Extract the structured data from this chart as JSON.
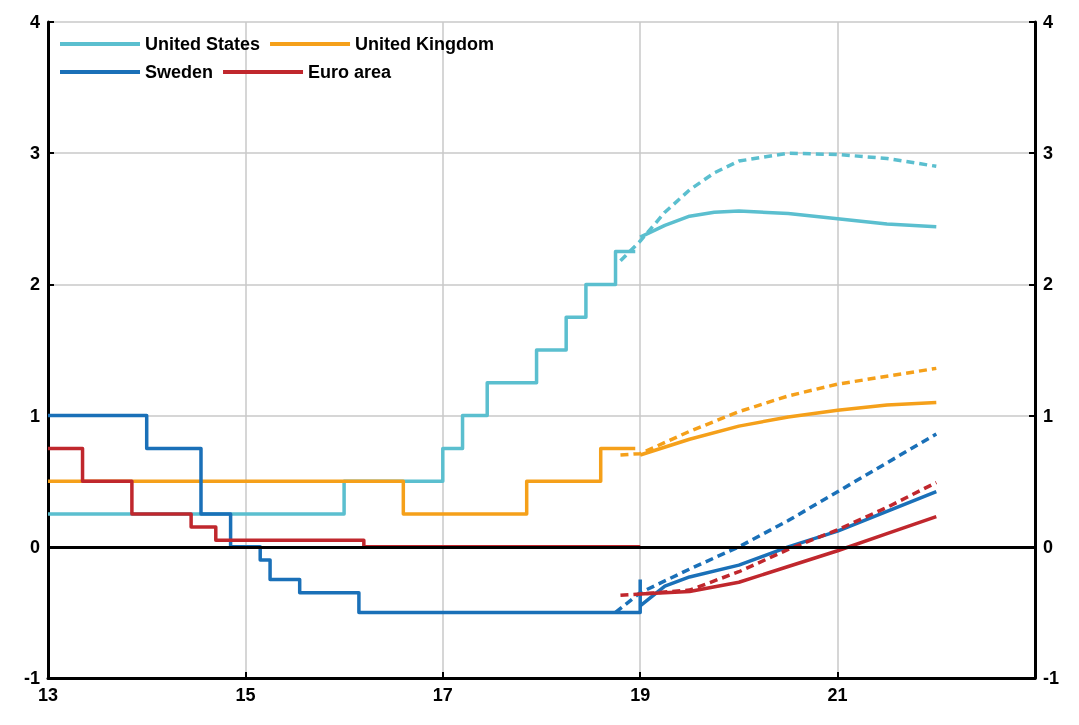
{
  "chart_data": {
    "type": "line",
    "xlim": [
      13,
      23
    ],
    "xticks": [
      13,
      15,
      17,
      19,
      21
    ],
    "ylim": [
      -1,
      4
    ],
    "yticks": [
      -1,
      0,
      1,
      2,
      3,
      4
    ],
    "y2lim": [
      -1,
      4
    ],
    "y2ticks": [
      -1,
      0,
      1,
      2,
      3,
      4
    ],
    "grid": true,
    "legend": "top left",
    "marker": "none",
    "ref_lines": [
      {
        "axis": "y",
        "value": 0,
        "color": "#000000"
      }
    ],
    "series": [
      {
        "name": "United States",
        "type": "step",
        "color": "#5bbfcf",
        "x": [
          13,
          16,
          17,
          17.2,
          17.45,
          17.95,
          18.25,
          18.45,
          18.75,
          18.95
        ],
        "values": [
          0.25,
          0.5,
          0.75,
          1,
          1.25,
          1.5,
          1.75,
          2,
          2.25,
          2.25
        ]
      },
      {
        "name": "United Kingdom",
        "type": "step",
        "color": "#f5a01a",
        "x": [
          13,
          16.6,
          17.85,
          18.6,
          18.95
        ],
        "values": [
          0.5,
          0.25,
          0.5,
          0.75,
          0.75
        ]
      },
      {
        "name": "Sweden",
        "type": "step",
        "color": "#1a70b8",
        "x": [
          13,
          14,
          14.55,
          14.85,
          15.15,
          15.25,
          15.55,
          16.15,
          19,
          19
        ],
        "values": [
          1,
          0.75,
          0.25,
          0,
          -0.1,
          -0.25,
          -0.35,
          -0.5,
          -0.5,
          -0.25
        ]
      },
      {
        "name": "Euro area",
        "type": "step",
        "color": "#c0272d",
        "x": [
          13,
          13.35,
          13.85,
          14.45,
          14.7,
          16.2,
          19
        ],
        "values": [
          0.75,
          0.5,
          0.25,
          0.15,
          0.05,
          0,
          0
        ]
      },
      {
        "color": "#5bbfcf",
        "line_style": "solid",
        "x": [
          19,
          19.25,
          19.5,
          19.75,
          20,
          20.5,
          21,
          21.5,
          22
        ],
        "values": [
          2.36,
          2.45,
          2.52,
          2.55,
          2.56,
          2.54,
          2.5,
          2.46,
          2.44
        ]
      },
      {
        "color": "#5bbfcf",
        "line_style": "dashed",
        "x": [
          18.8,
          19,
          19.25,
          19.5,
          19.75,
          20,
          20.5,
          21,
          21.5,
          22
        ],
        "values": [
          2.18,
          2.33,
          2.55,
          2.72,
          2.85,
          2.94,
          3,
          2.99,
          2.96,
          2.9
        ]
      },
      {
        "color": "#f5a01a",
        "line_style": "solid",
        "x": [
          19,
          19.5,
          20,
          20.5,
          21,
          21.5,
          22
        ],
        "values": [
          0.7,
          0.82,
          0.92,
          0.99,
          1.04,
          1.08,
          1.1
        ]
      },
      {
        "color": "#f5a01a",
        "line_style": "dashed",
        "x": [
          18.8,
          19,
          19.5,
          20,
          20.5,
          21,
          21.5,
          22
        ],
        "values": [
          0.7,
          0.71,
          0.88,
          1.03,
          1.15,
          1.24,
          1.3,
          1.36
        ]
      },
      {
        "color": "#1a70b8",
        "line_style": "solid",
        "x": [
          19,
          19.25,
          19.5,
          20,
          20.5,
          21,
          21.5,
          22
        ],
        "values": [
          -0.45,
          -0.3,
          -0.23,
          -0.14,
          0,
          0.12,
          0.27,
          0.42
        ]
      },
      {
        "color": "#1a70b8",
        "line_style": "dashed",
        "x": [
          18.75,
          19,
          19.5,
          20,
          20.5,
          21,
          21.5,
          22
        ],
        "values": [
          -0.5,
          -0.35,
          -0.17,
          0,
          0.2,
          0.42,
          0.64,
          0.86
        ]
      },
      {
        "color": "#c0272d",
        "line_style": "solid",
        "x": [
          19,
          19.5,
          20,
          20.5,
          21,
          21.5,
          22
        ],
        "values": [
          -0.36,
          -0.34,
          -0.27,
          -0.15,
          -0.03,
          0.1,
          0.23
        ]
      },
      {
        "color": "#c0272d",
        "line_style": "dashed",
        "x": [
          18.8,
          19,
          19.5,
          20,
          20.5,
          21,
          21.5,
          22
        ],
        "values": [
          -0.37,
          -0.36,
          -0.33,
          -0.19,
          -0.02,
          0.13,
          0.3,
          0.49
        ]
      }
    ]
  }
}
